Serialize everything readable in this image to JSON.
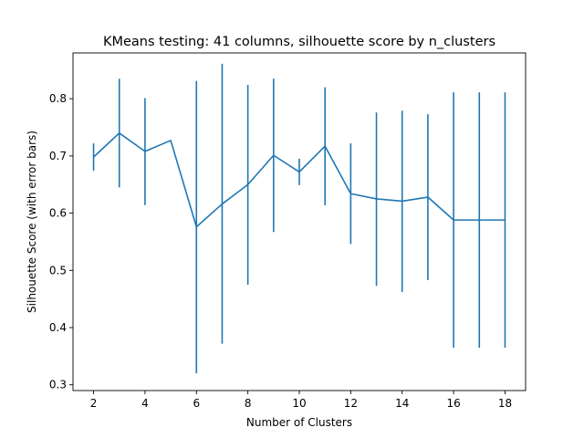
{
  "chart_data": {
    "type": "line",
    "title": "KMeans testing: 41 columns, silhouette score by n_clusters",
    "xlabel": "Number of Clusters",
    "ylabel": "Silhouette Score (with error bars)",
    "xlim": [
      1.2,
      18.8
    ],
    "ylim": [
      0.29,
      0.88
    ],
    "xticks": [
      2,
      4,
      6,
      8,
      10,
      12,
      14,
      16,
      18
    ],
    "yticks": [
      0.3,
      0.4,
      0.5,
      0.6,
      0.7,
      0.8
    ],
    "grid": false,
    "series": [
      {
        "name": "silhouette score",
        "color": "#1f77b4",
        "x": [
          2,
          3,
          4,
          5,
          6,
          7,
          8,
          9,
          10,
          11,
          12,
          13,
          14,
          15,
          16,
          17,
          18
        ],
        "values": [
          0.698,
          0.74,
          0.708,
          0.727,
          0.576,
          0.616,
          0.65,
          0.701,
          0.672,
          0.717,
          0.634,
          0.625,
          0.621,
          0.628,
          0.588,
          0.588,
          0.588
        ],
        "error_low": [
          0.674,
          0.645,
          0.614,
          0.727,
          0.32,
          0.372,
          0.475,
          0.567,
          0.649,
          0.614,
          0.546,
          0.473,
          0.462,
          0.483,
          0.365,
          0.365,
          0.365
        ],
        "error_high": [
          0.722,
          0.835,
          0.801,
          0.727,
          0.831,
          0.861,
          0.824,
          0.835,
          0.695,
          0.82,
          0.722,
          0.776,
          0.779,
          0.773,
          0.811,
          0.811,
          0.811
        ]
      }
    ]
  }
}
